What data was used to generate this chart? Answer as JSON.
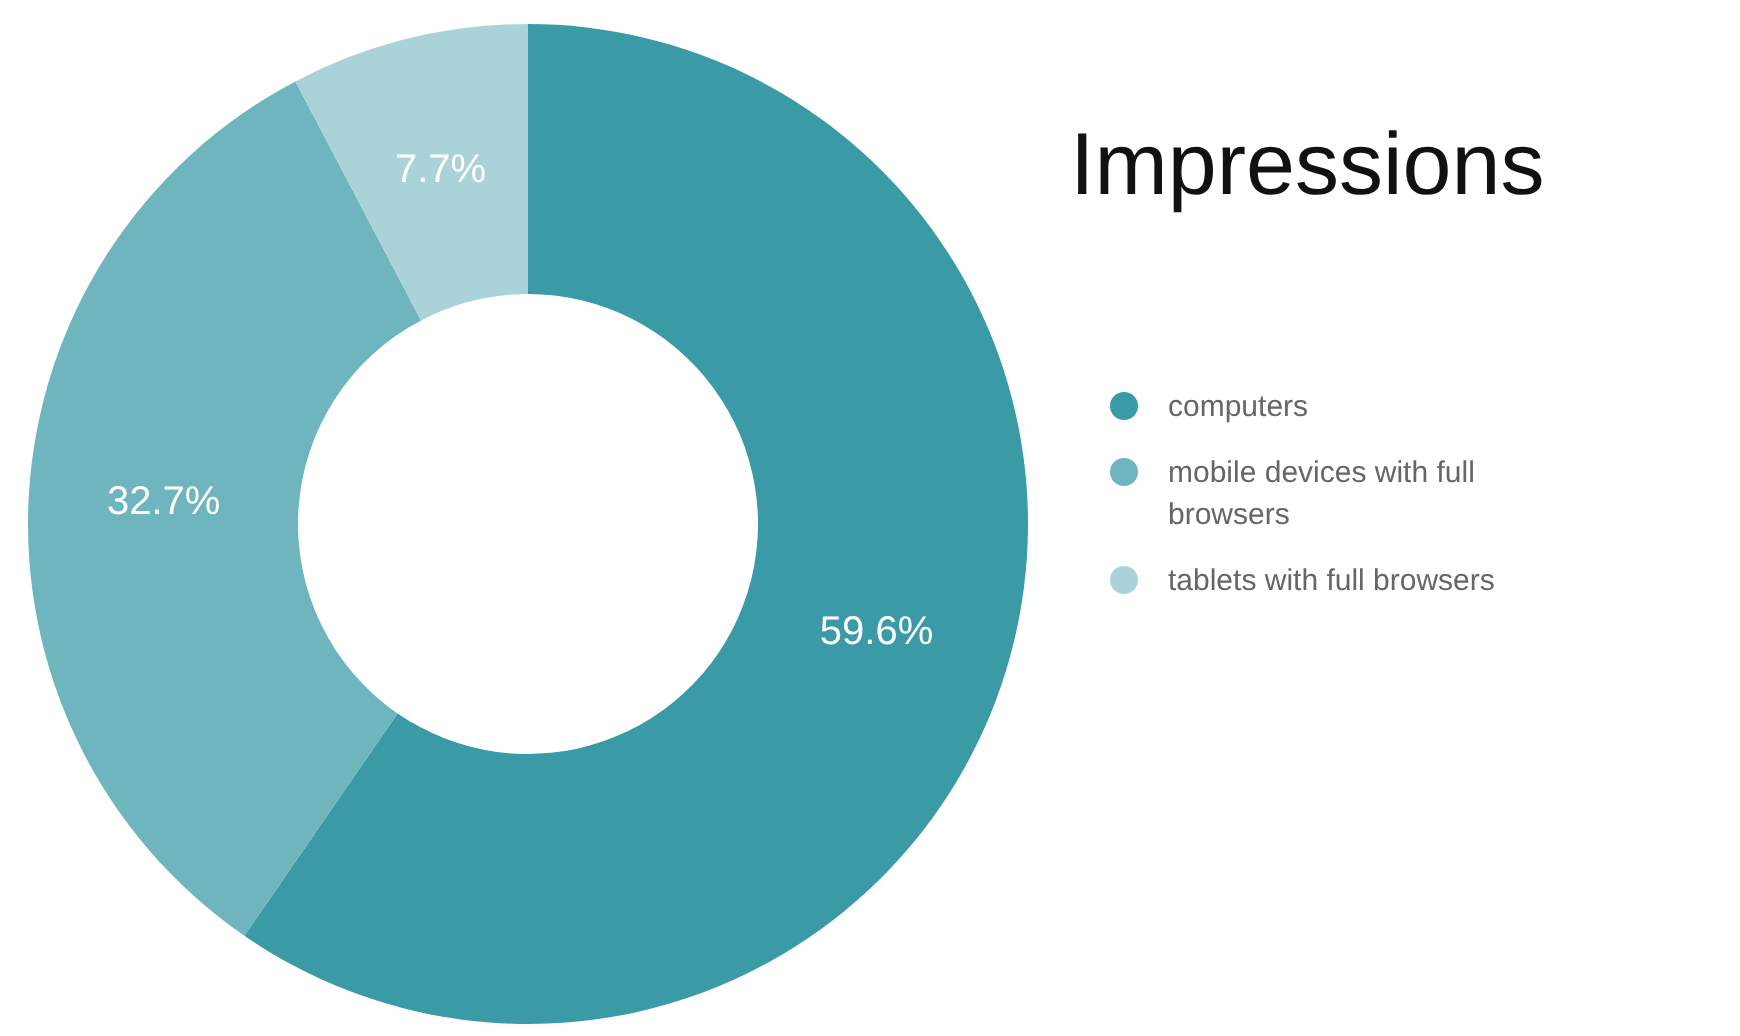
{
  "chart_data": {
    "type": "donut",
    "title": "Impressions",
    "categories": [
      "computers",
      "mobile devices with full browsers",
      "tablets with full browsers"
    ],
    "values": [
      59.6,
      32.7,
      7.7
    ],
    "colors": [
      "#3a9aa5",
      "#6fb5bd",
      "#a9d3d8"
    ],
    "value_labels": [
      "59.6%",
      "32.7%",
      "7.7%"
    ],
    "legend": "right"
  }
}
